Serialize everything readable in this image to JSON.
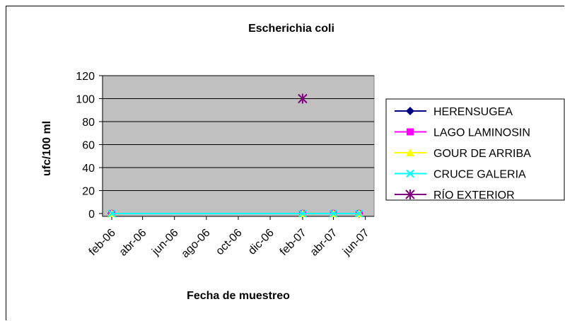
{
  "chart_data": {
    "type": "line",
    "title": "Escherichia coli",
    "xlabel": "Fecha de muestreo",
    "ylabel": "ufc/100 ml",
    "ylim": [
      0,
      120
    ],
    "yticks": [
      "0",
      "20",
      "40",
      "60",
      "80",
      "100",
      "120"
    ],
    "x_tick_labels": [
      "feb-06",
      "abr-06",
      "jun-06",
      "ago-06",
      "oct-06",
      "dic-06",
      "feb-07",
      "abr-07",
      "jun-07"
    ],
    "x_tick_dates": [
      "2006-02-01",
      "2006-04-01",
      "2006-06-01",
      "2006-08-01",
      "2006-10-01",
      "2006-12-01",
      "2007-02-01",
      "2007-04-01",
      "2007-06-01"
    ],
    "xlim": [
      "2006-02-01",
      "2007-06-15"
    ],
    "plot_background": "#c0c0c0",
    "grid": true,
    "legend_position": "right",
    "series": [
      {
        "name": "HERENSUGEA",
        "color": "#000080",
        "marker": "diamond",
        "points": [
          {
            "x": "2006-02-01",
            "y": 0
          },
          {
            "x": "2007-02-01",
            "y": 0
          },
          {
            "x": "2007-04-01",
            "y": 0
          },
          {
            "x": "2007-05-20",
            "y": 0
          }
        ]
      },
      {
        "name": "LAGO LAMINOSIN",
        "color": "#ff00ff",
        "marker": "square",
        "points": [
          {
            "x": "2006-02-01",
            "y": 0
          },
          {
            "x": "2007-02-01",
            "y": 0
          },
          {
            "x": "2007-04-01",
            "y": 0
          },
          {
            "x": "2007-05-20",
            "y": 0
          }
        ]
      },
      {
        "name": "GOUR DE ARRIBA",
        "color": "#ffff00",
        "marker": "triangle",
        "points": [
          {
            "x": "2006-02-01",
            "y": 0
          },
          {
            "x": "2007-02-01",
            "y": 0
          },
          {
            "x": "2007-04-01",
            "y": 0
          },
          {
            "x": "2007-05-20",
            "y": 0
          }
        ]
      },
      {
        "name": "CRUCE GALERIA",
        "color": "#00ffff",
        "marker": "x",
        "points": [
          {
            "x": "2006-02-01",
            "y": 0
          },
          {
            "x": "2007-02-01",
            "y": 0
          },
          {
            "x": "2007-04-01",
            "y": 0
          },
          {
            "x": "2007-05-20",
            "y": 0
          }
        ]
      },
      {
        "name": "RÍO EXTERIOR",
        "color": "#800080",
        "marker": "star",
        "points": [
          {
            "x": "2007-02-01",
            "y": 100
          }
        ]
      }
    ]
  }
}
